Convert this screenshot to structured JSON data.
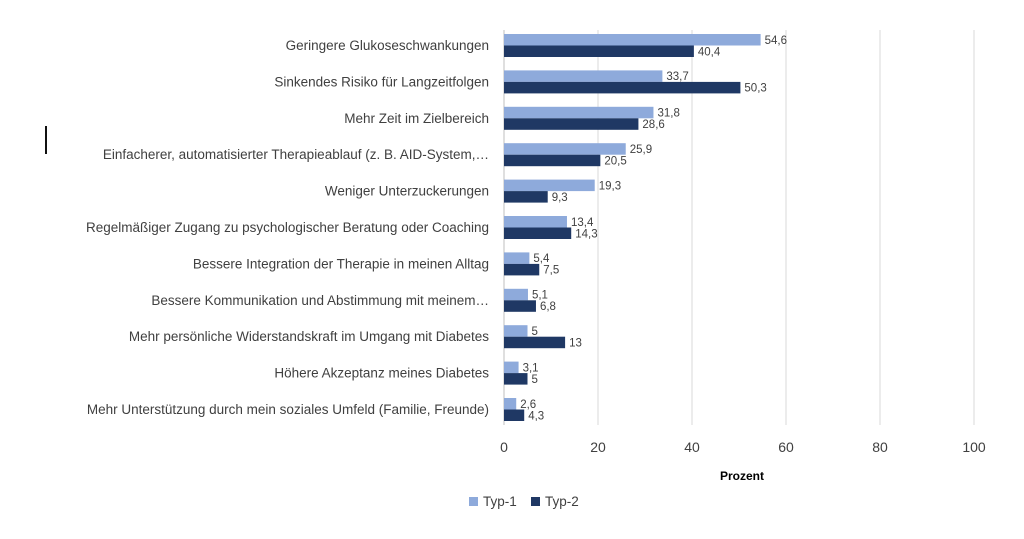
{
  "chart_data": {
    "type": "bar",
    "orientation": "horizontal",
    "categories": [
      "Geringere Glukoseschwankungen",
      "Sinkendes Risiko für Langzeitfolgen",
      "Mehr Zeit im Zielbereich",
      "Einfacherer, automatisierter Therapieablauf (z. B. AID-System,…",
      "Weniger Unterzuckerungen",
      "Regelmäßiger Zugang zu psychologischer Beratung oder Coaching",
      "Bessere Integration der Therapie in meinen Alltag",
      "Bessere Kommunikation und Abstimmung mit meinem…",
      "Mehr persönliche Widerstandskraft im Umgang mit Diabetes",
      "Höhere Akzeptanz meines Diabetes",
      "Mehr Unterstützung durch mein soziales Umfeld (Familie, Freunde)"
    ],
    "series": [
      {
        "name": "Typ-1",
        "color": "#8eaadb",
        "values": [
          54.6,
          33.7,
          31.8,
          25.9,
          19.3,
          13.4,
          5.4,
          5.1,
          5,
          3.1,
          2.6
        ],
        "labels": [
          "54,6",
          "33,7",
          "31,8",
          "25,9",
          "19,3",
          "13,4",
          "5,4",
          "5,1",
          "5",
          "3,1",
          "2,6"
        ]
      },
      {
        "name": "Typ-2",
        "color": "#1f3864",
        "values": [
          40.4,
          50.3,
          28.6,
          20.5,
          9.3,
          14.3,
          7.5,
          6.8,
          13,
          5,
          4.3
        ],
        "labels": [
          "40,4",
          "50,3",
          "28,6",
          "20,5",
          "9,3",
          "14,3",
          "7,5",
          "6,8",
          "13",
          "5",
          "4,3"
        ]
      }
    ],
    "xlabel": "Prozent",
    "xlim": [
      0,
      100
    ],
    "xticks": [
      "0",
      "20",
      "40",
      "60",
      "80",
      "100"
    ],
    "grid": true,
    "legend_position": "bottom"
  }
}
